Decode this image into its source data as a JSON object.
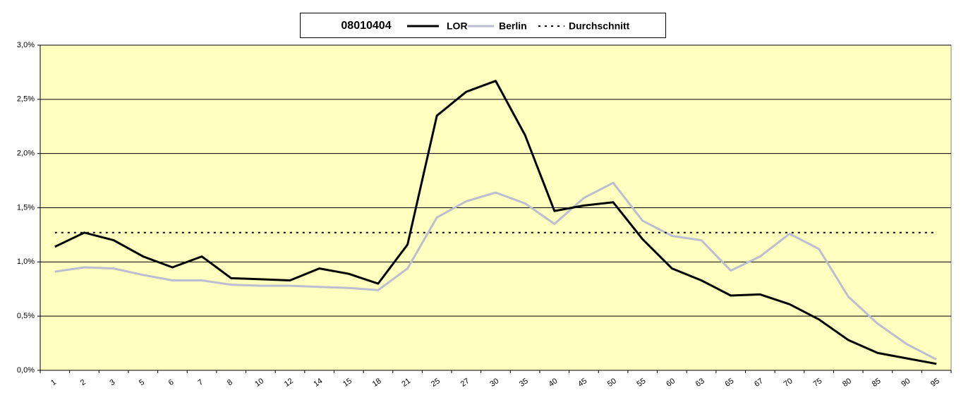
{
  "chart_data": {
    "type": "line",
    "title": "08010404",
    "categories": [
      "1",
      "2",
      "3",
      "5",
      "6",
      "7",
      "8",
      "10",
      "12",
      "14",
      "15",
      "18",
      "21",
      "25",
      "27",
      "30",
      "35",
      "40",
      "45",
      "50",
      "55",
      "60",
      "63",
      "65",
      "67",
      "70",
      "75",
      "80",
      "85",
      "90",
      "95"
    ],
    "series": [
      {
        "name": "LOR",
        "color": "#000000",
        "style": "solid",
        "values": [
          1.14,
          1.27,
          1.2,
          1.05,
          0.95,
          1.05,
          0.85,
          0.84,
          0.83,
          0.94,
          0.89,
          0.8,
          1.16,
          2.35,
          2.57,
          2.67,
          2.17,
          1.47,
          1.52,
          1.55,
          1.21,
          0.94,
          0.83,
          0.69,
          0.7,
          0.61,
          0.47,
          0.28,
          0.16,
          0.11,
          0.06
        ]
      },
      {
        "name": "Berlin",
        "color": "#bdbdd2",
        "style": "solid",
        "values": [
          0.91,
          0.95,
          0.94,
          0.88,
          0.83,
          0.83,
          0.79,
          0.78,
          0.78,
          0.77,
          0.76,
          0.74,
          0.94,
          1.41,
          1.56,
          1.64,
          1.54,
          1.35,
          1.59,
          1.73,
          1.38,
          1.24,
          1.2,
          0.92,
          1.05,
          1.26,
          1.12,
          0.68,
          0.43,
          0.24,
          0.1
        ]
      },
      {
        "name": "Durchschnitt",
        "color": "#000000",
        "style": "dotted",
        "values": [
          1.27,
          1.27,
          1.27,
          1.27,
          1.27,
          1.27,
          1.27,
          1.27,
          1.27,
          1.27,
          1.27,
          1.27,
          1.27,
          1.27,
          1.27,
          1.27,
          1.27,
          1.27,
          1.27,
          1.27,
          1.27,
          1.27,
          1.27,
          1.27,
          1.27,
          1.27,
          1.27,
          1.27,
          1.27,
          1.27,
          1.27
        ]
      }
    ],
    "ylim": [
      0,
      3
    ],
    "yticks": [
      {
        "value": 0,
        "label": "0,0%"
      },
      {
        "value": 0.5,
        "label": "0,5%"
      },
      {
        "value": 1,
        "label": "1,0%"
      },
      {
        "value": 1.5,
        "label": "1,5%"
      },
      {
        "value": 2,
        "label": "2,0%"
      },
      {
        "value": 2.5,
        "label": "2,5%"
      },
      {
        "value": 3,
        "label": "3,0%"
      }
    ],
    "grid": true,
    "background": "#ffffc0"
  }
}
